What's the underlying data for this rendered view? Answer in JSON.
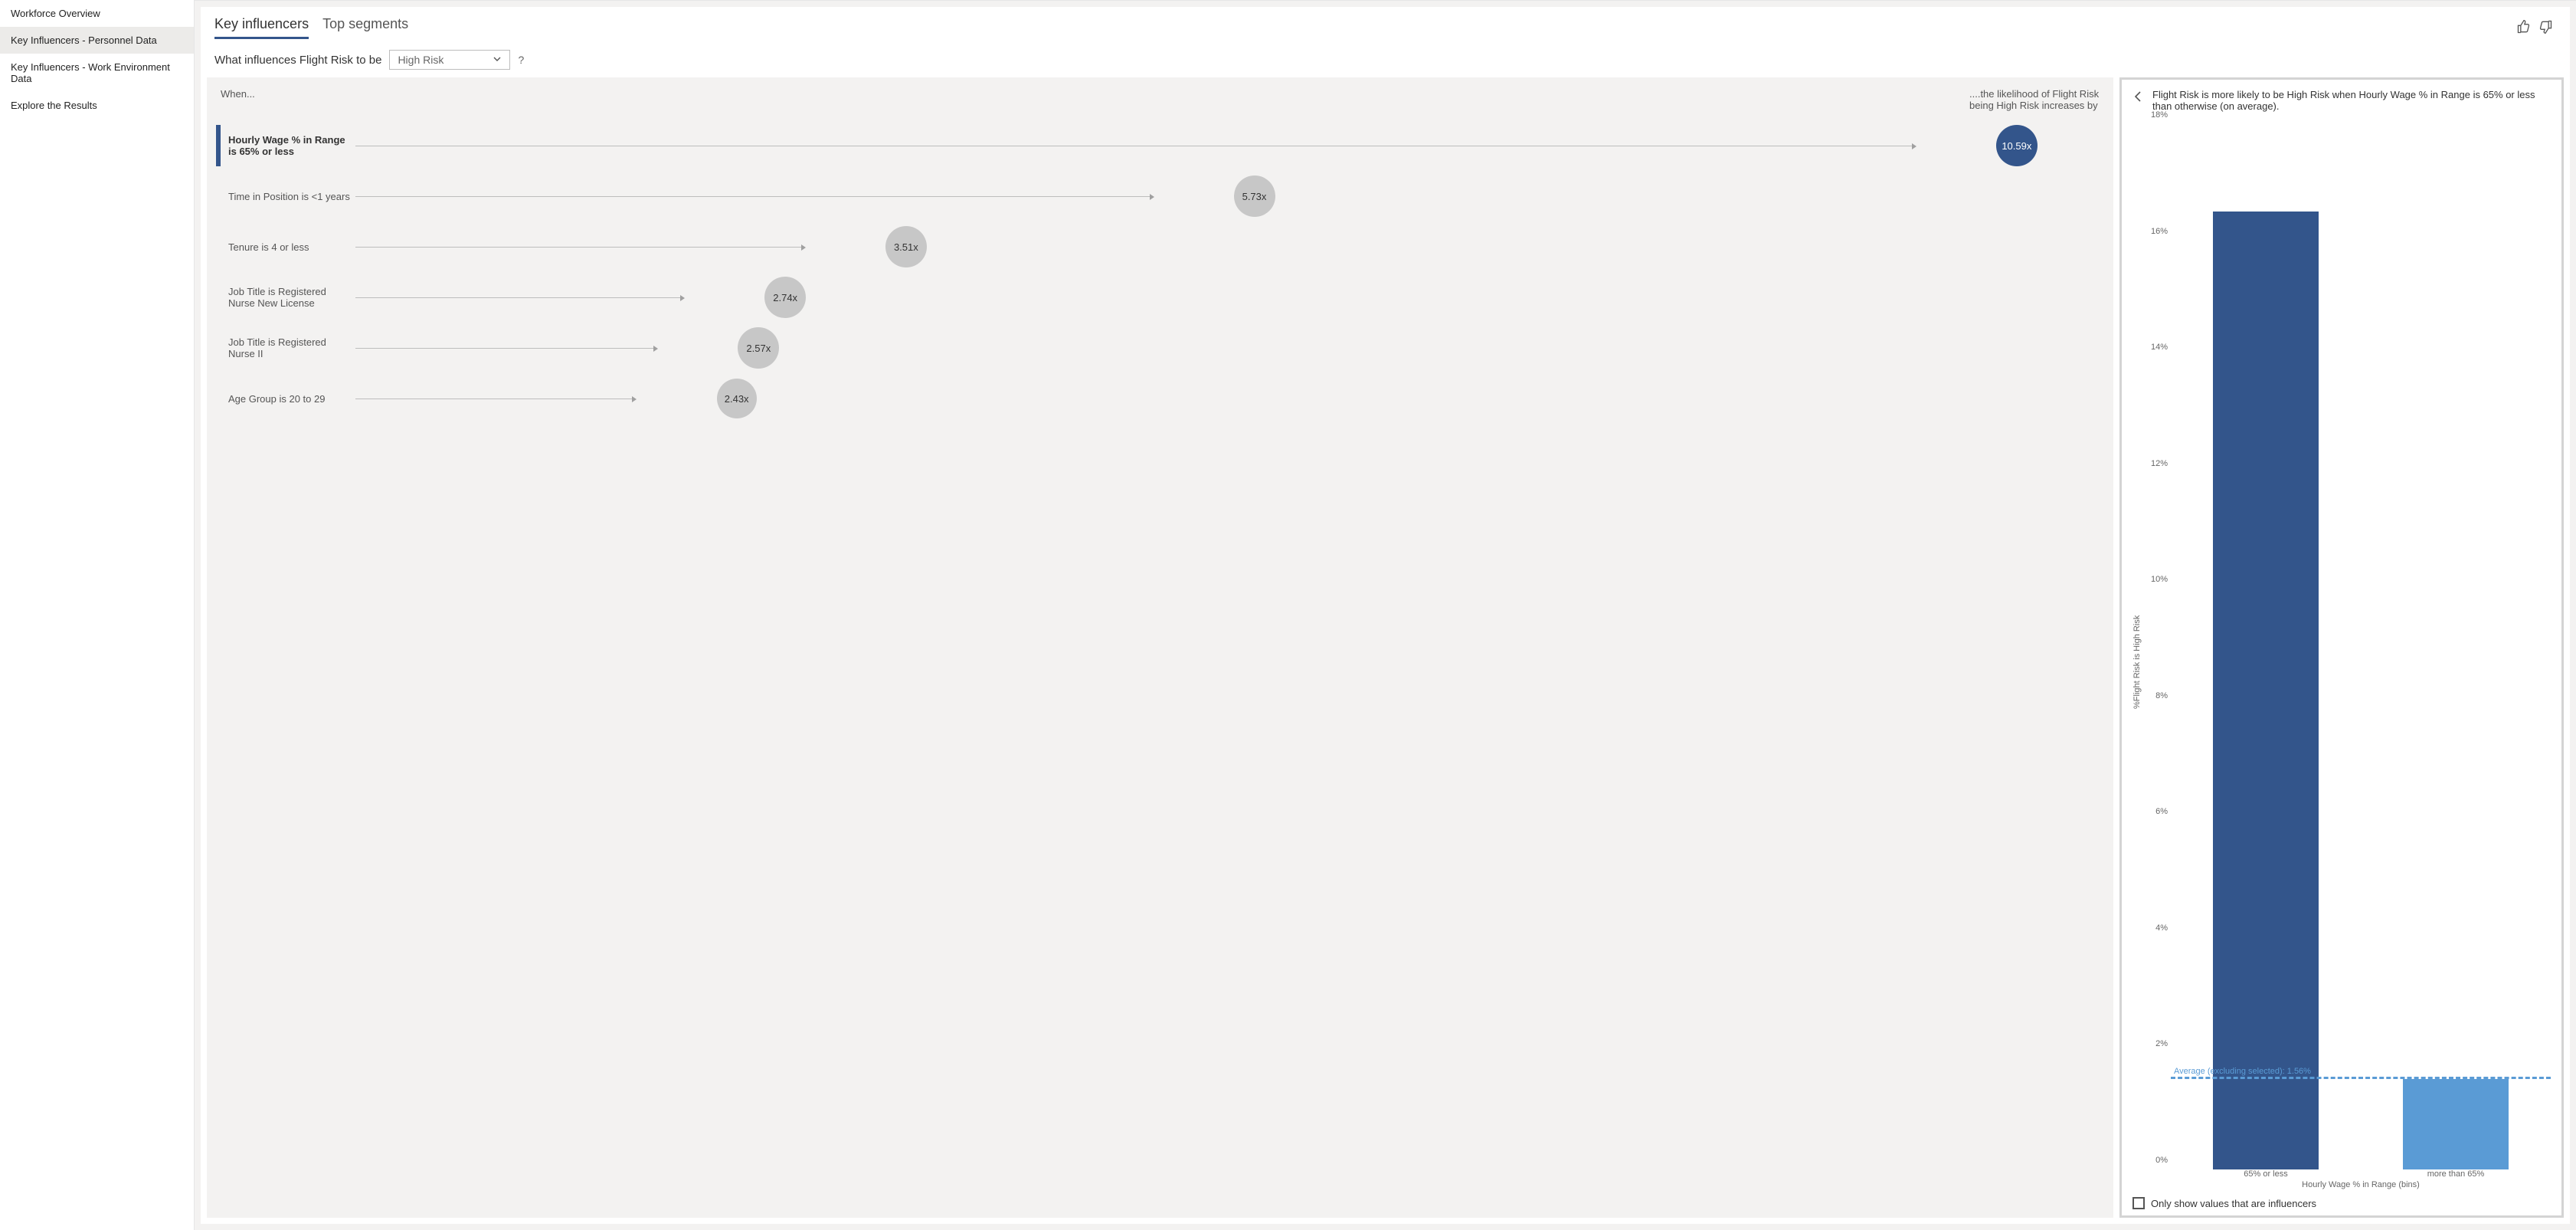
{
  "sidebar": {
    "items": [
      {
        "label": "Workforce Overview",
        "active": false
      },
      {
        "label": "Key Influencers - Personnel Data",
        "active": true
      },
      {
        "label": "Key Influencers - Work Environment Data",
        "active": false
      },
      {
        "label": "Explore the Results",
        "active": false
      }
    ]
  },
  "tabs": {
    "items": [
      {
        "label": "Key influencers",
        "active": true
      },
      {
        "label": "Top segments",
        "active": false
      }
    ]
  },
  "question": {
    "prefix": "What influences Flight Risk to be",
    "dropdown_value": "High Risk",
    "help": "?"
  },
  "leftPanel": {
    "colLeft": "When...",
    "colRight": "....the likelihood of Flight Risk being High Risk increases by"
  },
  "influencers": {
    "max_value": 10.59,
    "items": [
      {
        "label": "Hourly Wage % in Range is 65% or less",
        "value": 10.59,
        "display": "10.59x",
        "active": true,
        "color": "#33558b",
        "textColor": "#fff",
        "size": 54
      },
      {
        "label": "Time in Position is <1 years",
        "value": 5.73,
        "display": "5.73x",
        "active": false,
        "color": "#c7c7c7",
        "textColor": "#333",
        "size": 54
      },
      {
        "label": "Tenure is 4 or less",
        "value": 3.51,
        "display": "3.51x",
        "active": false,
        "color": "#c7c7c7",
        "textColor": "#333",
        "size": 54
      },
      {
        "label": "Job Title is Registered Nurse New License",
        "value": 2.74,
        "display": "2.74x",
        "active": false,
        "color": "#c7c7c7",
        "textColor": "#333",
        "size": 54
      },
      {
        "label": "Job Title is Registered Nurse II",
        "value": 2.57,
        "display": "2.57x",
        "active": false,
        "color": "#c7c7c7",
        "textColor": "#333",
        "size": 54
      },
      {
        "label": "Age Group is 20 to 29",
        "value": 2.43,
        "display": "2.43x",
        "active": false,
        "color": "#c7c7c7",
        "textColor": "#333",
        "size": 52
      }
    ]
  },
  "rightPanel": {
    "title": "Flight Risk is more likely to be High Risk when Hourly Wage % in Range is 65% or less than otherwise (on average).",
    "chart": {
      "type": "bar",
      "y_max": 18,
      "y_ticks": [
        0,
        2,
        4,
        6,
        8,
        10,
        12,
        14,
        16,
        18
      ],
      "y_tick_labels": [
        "0%",
        "2%",
        "4%",
        "6%",
        "8%",
        "10%",
        "12%",
        "14%",
        "16%",
        "18%"
      ],
      "y_label": "%Flight Risk is High Risk",
      "x_label": "Hourly Wage % in Range (bins)",
      "categories": [
        "65% or less",
        "more than 65%"
      ],
      "values": [
        16.5,
        1.56
      ],
      "bar_colors": [
        "#33558b",
        "#5a9bd5"
      ],
      "bar_width_pct": 28,
      "background": "#ffffff",
      "avg_value": 1.56,
      "avg_label": "Average (excluding selected): 1.56%",
      "avg_color": "#5a9bd5"
    },
    "checkbox_label": "Only show values that are influencers"
  }
}
